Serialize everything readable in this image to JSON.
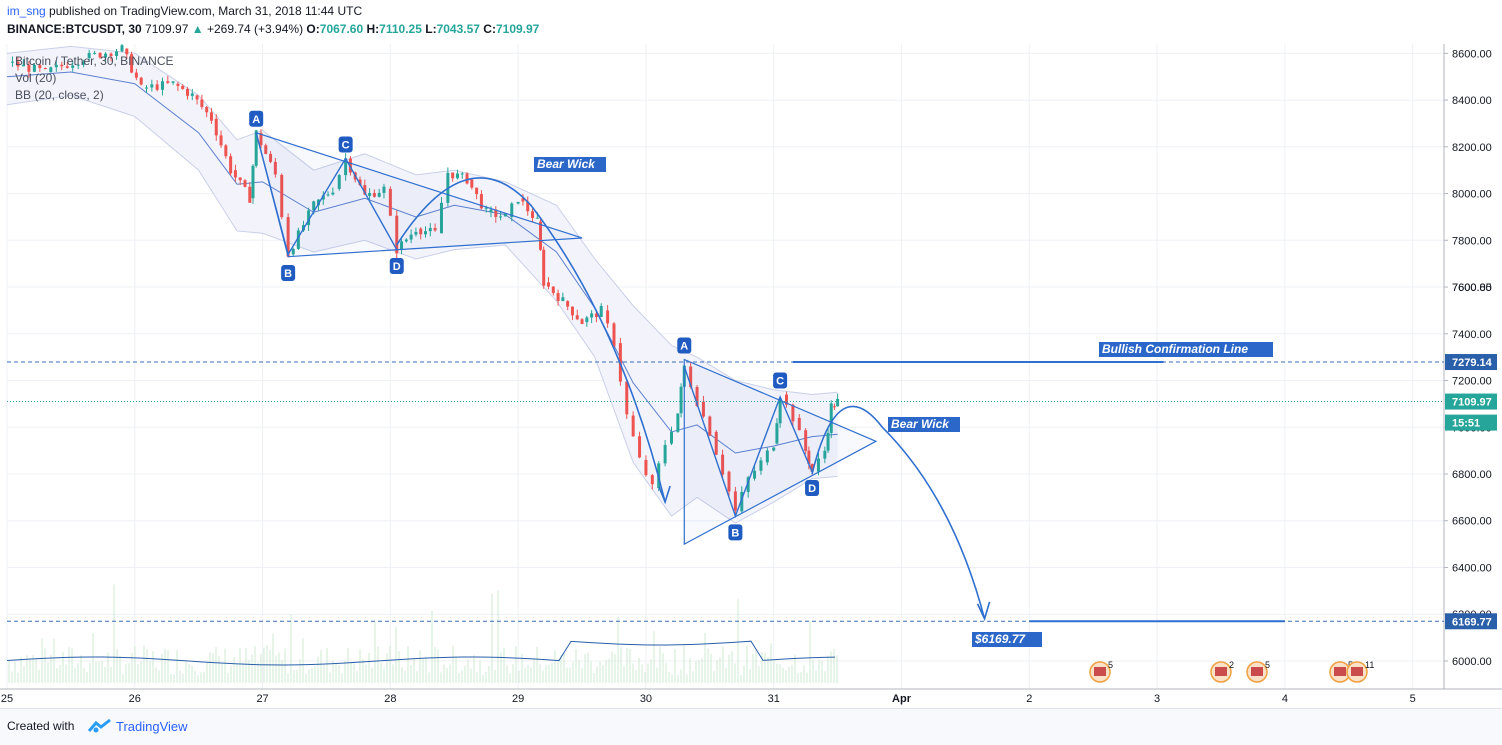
{
  "header": {
    "user": "im_sng",
    "published_text": "published on TradingView.com, March 31, 2018 11:44 UTC",
    "symbol": "BINANCE:BTCUSDT, 30",
    "last": "7109.97",
    "change": "+269.74 (+3.94%)",
    "o_label": "O:",
    "o": "7067.60",
    "h_label": "H:",
    "h": "7110.25",
    "l_label": "L:",
    "l": "7043.57",
    "c_label": "C:",
    "c": "7109.97"
  },
  "legend": {
    "title": "Bitcoin / Tether, 30, BINANCE",
    "vol": "Vol (20)",
    "bb": "BB (20, close, 2)"
  },
  "annotations": {
    "bear_wick_1": "Bear Wick",
    "bear_wick_2": "Bear Wick",
    "bullish_line": "Bullish Confirmation Line",
    "target": "$6169.77"
  },
  "footer": {
    "created_with": "Created with",
    "brand": "TradingView"
  },
  "colors": {
    "up": "#26a69a",
    "down": "#ef5350",
    "drawing": "#2f6fcf",
    "band": "#c9cfe8",
    "last_price_badge": "#26a69a",
    "level_badge": "#2a5faa"
  },
  "chart_data": {
    "type": "candlestick",
    "title": "Bitcoin / Tether, 30, BINANCE",
    "x_ticks": [
      "25",
      "26",
      "27",
      "28",
      "29",
      "30",
      "31",
      "Apr",
      "2",
      "3",
      "4",
      "5"
    ],
    "y_ticks": [
      6000,
      6200,
      6400,
      6600,
      6800,
      7000,
      7200,
      7400,
      7600,
      7800,
      8000,
      8200,
      8400,
      8600
    ],
    "ylim": [
      5880,
      8640
    ],
    "xlim": [
      25.0,
      36.3
    ],
    "grid": true,
    "price_labels": [
      {
        "text": "7600.85",
        "value": 7600.85,
        "kind": "grid"
      },
      {
        "text": "7279.14",
        "value": 7279.14,
        "kind": "level"
      },
      {
        "text": "7109.97",
        "value": 7109.97,
        "kind": "last"
      },
      {
        "text": "15:51",
        "value": 7020,
        "kind": "countdown"
      },
      {
        "text": "6169.77",
        "value": 6169.77,
        "kind": "level"
      }
    ],
    "price_path": [
      [
        25.0,
        8560
      ],
      [
        25.3,
        8520
      ],
      [
        25.6,
        8580
      ],
      [
        25.9,
        8620
      ],
      [
        26.05,
        8450
      ],
      [
        26.3,
        8470
      ],
      [
        26.45,
        8420
      ],
      [
        26.6,
        8320
      ],
      [
        26.75,
        8100
      ],
      [
        26.9,
        7980
      ],
      [
        26.95,
        8260
      ],
      [
        27.1,
        8080
      ],
      [
        27.2,
        7740
      ],
      [
        27.4,
        7950
      ],
      [
        27.55,
        8020
      ],
      [
        27.65,
        8150
      ],
      [
        27.8,
        7990
      ],
      [
        27.95,
        8020
      ],
      [
        28.05,
        7760
      ],
      [
        28.2,
        7850
      ],
      [
        28.35,
        7830
      ],
      [
        28.45,
        8090
      ],
      [
        28.6,
        8060
      ],
      [
        28.75,
        7920
      ],
      [
        28.9,
        7900
      ],
      [
        29.0,
        7980
      ],
      [
        29.15,
        7880
      ],
      [
        29.2,
        7620
      ],
      [
        29.35,
        7540
      ],
      [
        29.5,
        7450
      ],
      [
        29.65,
        7500
      ],
      [
        29.75,
        7360
      ],
      [
        29.85,
        7050
      ],
      [
        29.95,
        6860
      ],
      [
        30.05,
        6740
      ],
      [
        30.15,
        6930
      ],
      [
        30.25,
        7060
      ],
      [
        30.3,
        7260
      ],
      [
        30.4,
        7110
      ],
      [
        30.5,
        6980
      ],
      [
        30.6,
        6810
      ],
      [
        30.7,
        6640
      ],
      [
        30.8,
        6780
      ],
      [
        30.9,
        6850
      ],
      [
        31.0,
        6930
      ],
      [
        31.05,
        7140
      ],
      [
        31.15,
        7040
      ],
      [
        31.25,
        6900
      ],
      [
        31.3,
        6810
      ],
      [
        31.4,
        6900
      ],
      [
        31.45,
        7090
      ],
      [
        31.5,
        7110
      ]
    ],
    "bollinger_upper": [
      [
        25.0,
        8600
      ],
      [
        25.5,
        8630
      ],
      [
        26.0,
        8600
      ],
      [
        26.5,
        8420
      ],
      [
        26.8,
        8230
      ],
      [
        27.0,
        8270
      ],
      [
        27.4,
        8100
      ],
      [
        27.8,
        8170
      ],
      [
        28.2,
        8080
      ],
      [
        28.5,
        8100
      ],
      [
        28.9,
        8050
      ],
      [
        29.3,
        7950
      ],
      [
        29.6,
        7720
      ],
      [
        29.9,
        7520
      ],
      [
        30.2,
        7350
      ],
      [
        30.4,
        7300
      ],
      [
        30.7,
        7200
      ],
      [
        31.0,
        7160
      ],
      [
        31.3,
        7140
      ],
      [
        31.5,
        7150
      ]
    ],
    "bollinger_lower": [
      [
        25.0,
        8380
      ],
      [
        25.5,
        8420
      ],
      [
        26.0,
        8330
      ],
      [
        26.5,
        8100
      ],
      [
        26.8,
        7840
      ],
      [
        27.0,
        7830
      ],
      [
        27.4,
        7750
      ],
      [
        27.8,
        7800
      ],
      [
        28.2,
        7720
      ],
      [
        28.5,
        7760
      ],
      [
        28.9,
        7780
      ],
      [
        29.3,
        7540
      ],
      [
        29.6,
        7300
      ],
      [
        29.9,
        6850
      ],
      [
        30.2,
        6620
      ],
      [
        30.4,
        6700
      ],
      [
        30.7,
        6590
      ],
      [
        31.0,
        6680
      ],
      [
        31.3,
        6780
      ],
      [
        31.5,
        6790
      ]
    ],
    "bollinger_basis": [
      [
        25.0,
        8500
      ],
      [
        25.5,
        8520
      ],
      [
        26.0,
        8470
      ],
      [
        26.5,
        8260
      ],
      [
        26.8,
        8040
      ],
      [
        27.0,
        8050
      ],
      [
        27.4,
        7920
      ],
      [
        27.8,
        7980
      ],
      [
        28.2,
        7900
      ],
      [
        28.5,
        7950
      ],
      [
        28.9,
        7910
      ],
      [
        29.3,
        7750
      ],
      [
        29.6,
        7510
      ],
      [
        29.9,
        7190
      ],
      [
        30.2,
        6980
      ],
      [
        30.4,
        7010
      ],
      [
        30.7,
        6890
      ],
      [
        31.0,
        6920
      ],
      [
        31.3,
        6960
      ],
      [
        31.5,
        6970
      ]
    ],
    "drawings": {
      "triangle_1": [
        [
          26.95,
          8260
        ],
        [
          27.2,
          7730
        ],
        [
          29.5,
          7810
        ]
      ],
      "triangle_2": [
        [
          30.3,
          7290
        ],
        [
          30.3,
          6500
        ],
        [
          31.8,
          6940
        ]
      ],
      "wave_1": [
        [
          26.95,
          8260
        ],
        [
          27.2,
          7740
        ],
        [
          27.65,
          8150
        ],
        [
          28.05,
          7760
        ]
      ],
      "wave_2": [
        [
          30.3,
          7260
        ],
        [
          30.7,
          6620
        ],
        [
          31.05,
          7130
        ],
        [
          31.3,
          6810
        ]
      ],
      "abcd_labels": [
        {
          "text": "A",
          "x": 26.95,
          "y": 8320
        },
        {
          "text": "B",
          "x": 27.2,
          "y": 7660
        },
        {
          "text": "C",
          "x": 27.65,
          "y": 8210
        },
        {
          "text": "D",
          "x": 28.05,
          "y": 7690
        },
        {
          "text": "A",
          "x": 30.3,
          "y": 7350
        },
        {
          "text": "B",
          "x": 30.7,
          "y": 6550
        },
        {
          "text": "C",
          "x": 31.05,
          "y": 7200
        },
        {
          "text": "D",
          "x": 31.3,
          "y": 6740
        }
      ],
      "bullish_line": {
        "y": 7279.14,
        "x1": 31.15,
        "x2": 34.05
      },
      "target_line": {
        "y": 6169.77,
        "x1": 33.0,
        "x2": 35.0
      }
    },
    "volume_scale_note": "volume bars overlaid on lower portion"
  }
}
